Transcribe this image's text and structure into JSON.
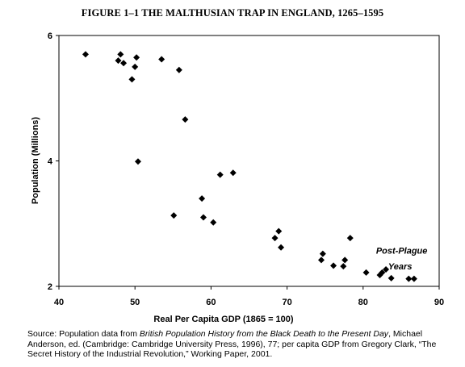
{
  "figure": {
    "title": "FIGURE 1–1     THE MALTHUSIAN TRAP IN ENGLAND, 1265–1595"
  },
  "chart_data": {
    "type": "scatter",
    "title": "FIGURE 1–1     THE MALTHUSIAN TRAP IN ENGLAND, 1265–1595",
    "xlabel": "Real Per Capita GDP (1865 = 100)",
    "ylabel": "Population (Millions)",
    "xlim": [
      40,
      90
    ],
    "ylim": [
      2,
      6
    ],
    "xticks": [
      "40",
      "50",
      "60",
      "70",
      "80",
      "90"
    ],
    "yticks": [
      "2",
      "4",
      "6"
    ],
    "grid": false,
    "points": [
      {
        "x": 43.5,
        "y": 5.7
      },
      {
        "x": 47.8,
        "y": 5.6
      },
      {
        "x": 48.1,
        "y": 5.7
      },
      {
        "x": 48.5,
        "y": 5.56
      },
      {
        "x": 49.6,
        "y": 5.3
      },
      {
        "x": 50.0,
        "y": 5.5
      },
      {
        "x": 50.2,
        "y": 5.65
      },
      {
        "x": 53.5,
        "y": 5.62
      },
      {
        "x": 55.8,
        "y": 5.45
      },
      {
        "x": 56.6,
        "y": 4.66
      },
      {
        "x": 50.4,
        "y": 3.99
      },
      {
        "x": 55.1,
        "y": 3.13
      },
      {
        "x": 58.8,
        "y": 3.4
      },
      {
        "x": 59.0,
        "y": 3.1
      },
      {
        "x": 60.3,
        "y": 3.02
      },
      {
        "x": 61.2,
        "y": 3.78
      },
      {
        "x": 62.9,
        "y": 3.81
      },
      {
        "x": 68.4,
        "y": 2.77
      },
      {
        "x": 68.9,
        "y": 2.88
      },
      {
        "x": 69.2,
        "y": 2.62
      },
      {
        "x": 74.5,
        "y": 2.42
      },
      {
        "x": 74.7,
        "y": 2.52
      },
      {
        "x": 76.1,
        "y": 2.33
      },
      {
        "x": 77.4,
        "y": 2.32
      },
      {
        "x": 77.6,
        "y": 2.42
      },
      {
        "x": 78.3,
        "y": 2.77
      },
      {
        "x": 80.4,
        "y": 2.22
      },
      {
        "x": 82.2,
        "y": 2.18
      },
      {
        "x": 82.5,
        "y": 2.22
      },
      {
        "x": 83.0,
        "y": 2.27
      },
      {
        "x": 83.7,
        "y": 2.13
      },
      {
        "x": 86.0,
        "y": 2.12
      },
      {
        "x": 86.7,
        "y": 2.12
      }
    ],
    "annotations": [
      {
        "text": "Post-Plague",
        "x": 81.7,
        "y": 2.52
      },
      {
        "text": "Years",
        "x": 83.3,
        "y": 2.27
      }
    ]
  },
  "source": {
    "prefix": "Source: Population data from ",
    "book_title": "British Population History from the Black Death to the Present Day",
    "after_title": ", Michael Anderson, ed. (Cambridge: Cambridge University Press, 1996), 77; per capita GDP from Gregory Clark, “The Secret History of the Industrial Revolution,” Working Paper, 2001."
  }
}
